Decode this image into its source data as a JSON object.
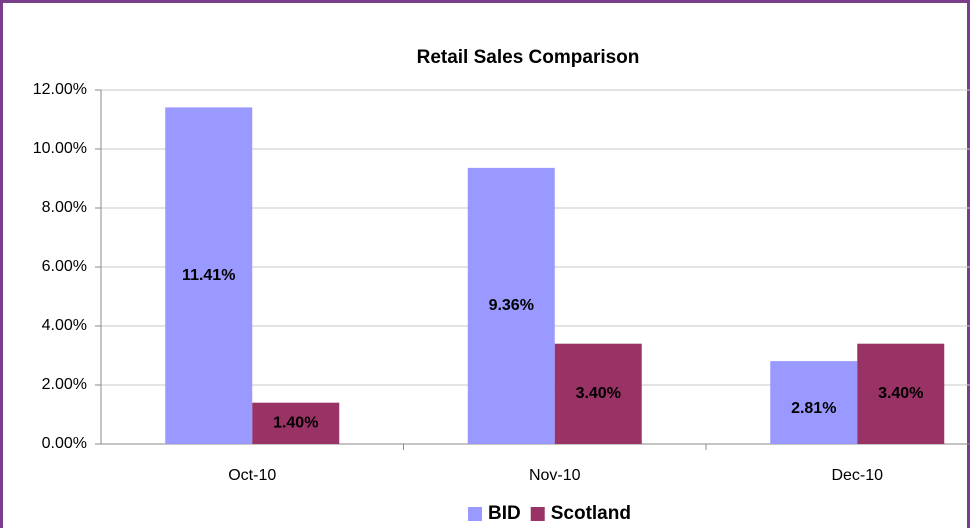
{
  "chart_data": {
    "type": "bar",
    "title": "Retail Sales Comparison",
    "categories": [
      "Oct-10",
      "Nov-10",
      "Dec-10"
    ],
    "series": [
      {
        "name": "BID",
        "color": "#9999ff",
        "values": [
          11.41,
          9.36,
          2.81
        ],
        "value_labels": [
          "11.41%",
          "9.36%",
          "2.81%"
        ]
      },
      {
        "name": "Scotland",
        "color": "#993366",
        "values": [
          1.4,
          3.4,
          3.4
        ],
        "value_labels": [
          "1.40%",
          "3.40%",
          "3.40%"
        ]
      }
    ],
    "ylim": [
      0,
      12
    ],
    "yticks": [
      {
        "value": 0,
        "label": "0.00%"
      },
      {
        "value": 2,
        "label": "2.00%"
      },
      {
        "value": 4,
        "label": "4.00%"
      },
      {
        "value": 6,
        "label": "6.00%"
      },
      {
        "value": 8,
        "label": "8.00%"
      },
      {
        "value": 10,
        "label": "10.00%"
      },
      {
        "value": 12,
        "label": "12.00%"
      }
    ],
    "grid": true,
    "legend": "bottom"
  }
}
